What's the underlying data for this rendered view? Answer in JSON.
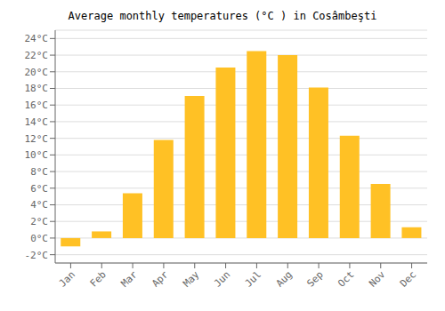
{
  "chart_data": {
    "type": "bar",
    "title": "Average monthly temperatures (°C ) in Cosâmbeşti",
    "categories": [
      "Jan",
      "Feb",
      "Mar",
      "Apr",
      "May",
      "Jun",
      "Jul",
      "Aug",
      "Sep",
      "Oct",
      "Nov",
      "Dec"
    ],
    "values": [
      -1.0,
      0.8,
      5.4,
      11.8,
      17.1,
      20.5,
      22.5,
      22.0,
      18.1,
      12.3,
      6.5,
      1.3
    ],
    "color": "#FFC125",
    "ylim": [
      -3,
      25
    ],
    "yticks": [
      {
        "value": -2,
        "label": "-2°C"
      },
      {
        "value": 0,
        "label": "0°C"
      },
      {
        "value": 2,
        "label": "2°C"
      },
      {
        "value": 4,
        "label": "4°C"
      },
      {
        "value": 6,
        "label": "6°C"
      },
      {
        "value": 8,
        "label": "8°C"
      },
      {
        "value": 10,
        "label": "10°C"
      },
      {
        "value": 12,
        "label": "12°C"
      },
      {
        "value": 14,
        "label": "14°C"
      },
      {
        "value": 16,
        "label": "16°C"
      },
      {
        "value": 18,
        "label": "18°C"
      },
      {
        "value": 20,
        "label": "20°C"
      },
      {
        "value": 22,
        "label": "22°C"
      },
      {
        "value": 24,
        "label": "24°C"
      }
    ],
    "grid": true
  }
}
